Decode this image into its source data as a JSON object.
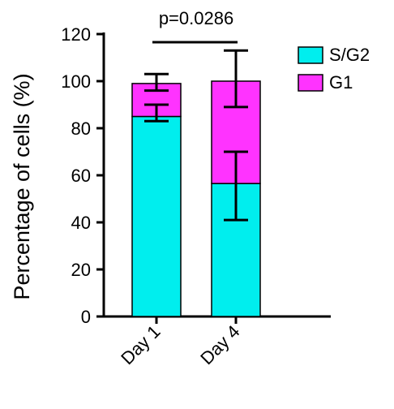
{
  "chart_data": {
    "type": "bar",
    "stacked": true,
    "categories": [
      "Day 1",
      "Day 4"
    ],
    "series": [
      {
        "name": "S/G2",
        "color": "#00eeee",
        "values": [
          85,
          56.5
        ],
        "error_low": [
          83,
          41
        ],
        "error_high": [
          90,
          70
        ]
      },
      {
        "name": "G1",
        "color": "#ff33ff",
        "values": [
          14,
          43.5
        ],
        "error_low": [
          96,
          89
        ],
        "error_high": [
          103,
          113
        ]
      }
    ],
    "ylabel": "Percentage of cells (%)",
    "xlabel": "",
    "title": "",
    "ylim": [
      0,
      120
    ],
    "yticks": [
      0,
      20,
      40,
      60,
      80,
      100,
      120
    ],
    "grid": false,
    "legend_position": "top-right",
    "annotation": {
      "text": "p=0.0286",
      "between": [
        "Day 1",
        "Day 4"
      ]
    }
  }
}
